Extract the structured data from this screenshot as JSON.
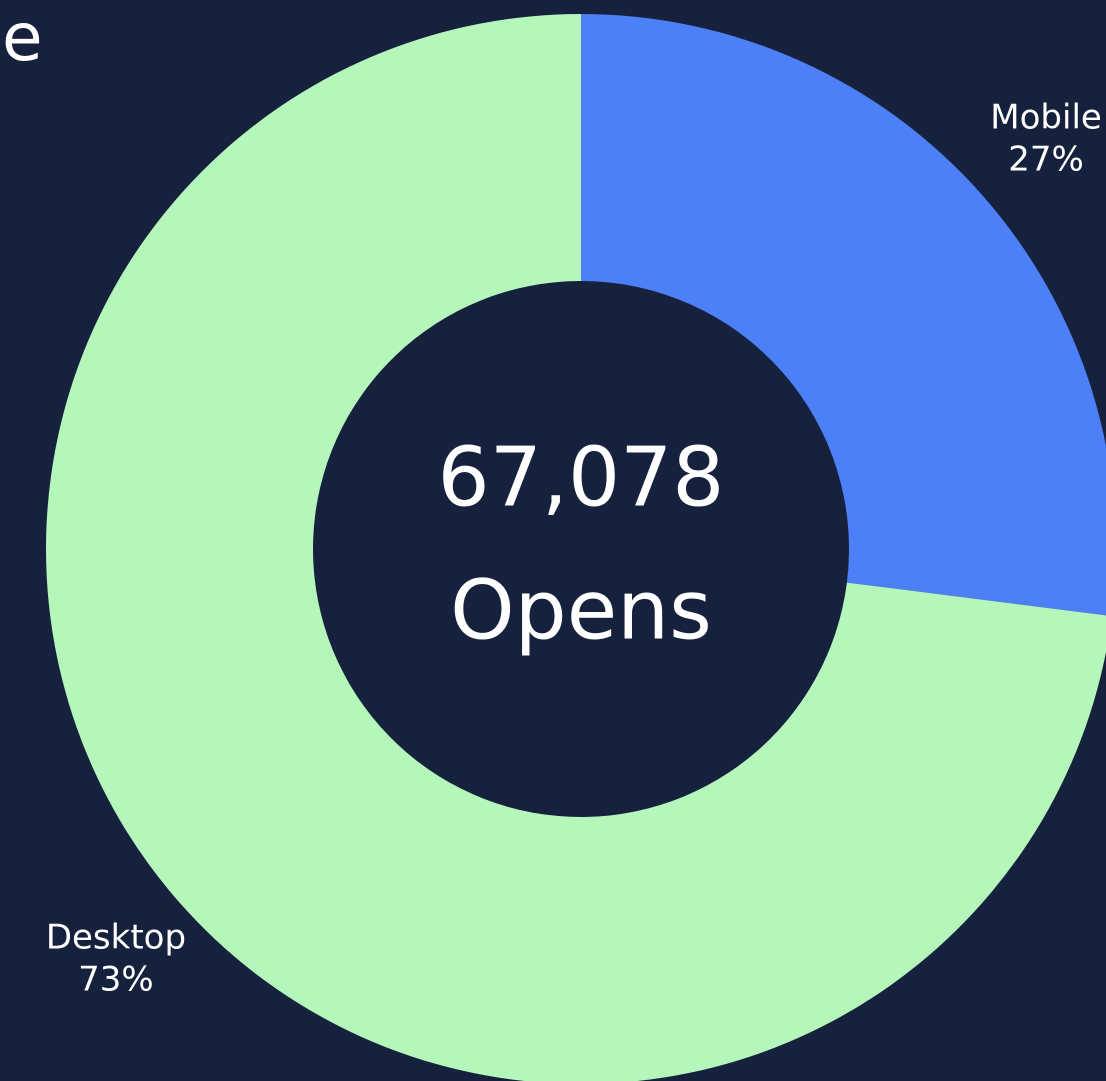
{
  "chart_data": {
    "type": "donut",
    "title": "e",
    "categories": [
      "Mobile",
      "Desktop"
    ],
    "values": [
      27,
      73
    ],
    "value_labels": [
      "27%",
      "73%"
    ],
    "colors": [
      "#4d80f7",
      "#b5f7bb"
    ],
    "center_value": 67078,
    "center_value_label": "67,078",
    "center_caption": "Opens"
  }
}
